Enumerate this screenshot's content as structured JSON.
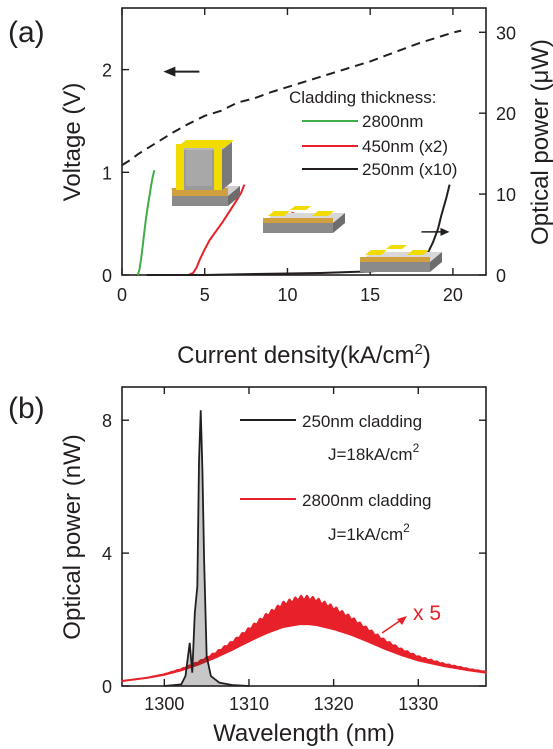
{
  "chart_data": [
    {
      "panel_label": "(a)",
      "type": "line",
      "xlabel": "Current density(kA/cm",
      "xlabel_sup": "2",
      "xlabel_end": ")",
      "ylabel": "Voltage (V)",
      "y2label": "Optical power (",
      "y2label_unit": "μW",
      "y2label_end": ")",
      "xlim": [
        0,
        22
      ],
      "ylim": [
        0,
        2.6
      ],
      "y2lim": [
        0,
        33
      ],
      "xticks": [
        0,
        5,
        10,
        15,
        20
      ],
      "yticks": [
        0,
        1,
        2
      ],
      "y2ticks": [
        0,
        10,
        20,
        30
      ],
      "legend_title": "Cladding thickness:",
      "legend_position": "top-right",
      "series": [
        {
          "name": "2800nm",
          "axis": "left",
          "color": "#3fae49",
          "style": "solid",
          "x": [
            0.95,
            1.05,
            1.15,
            1.25,
            1.35,
            1.45,
            1.55,
            1.65,
            1.75,
            1.85,
            1.95
          ],
          "y": [
            0,
            0.05,
            0.15,
            0.28,
            0.42,
            0.55,
            0.66,
            0.76,
            0.86,
            0.95,
            1.02
          ]
        },
        {
          "name": "450nm (x2)",
          "axis": "left",
          "color": "#e8202a",
          "style": "solid",
          "x": [
            3.0,
            4.0,
            4.3,
            4.5,
            4.7,
            5.0,
            5.3,
            5.7,
            6.1,
            6.5,
            6.9,
            7.2,
            7.4
          ],
          "y": [
            0,
            0,
            0.02,
            0.07,
            0.15,
            0.25,
            0.34,
            0.43,
            0.52,
            0.62,
            0.72,
            0.8,
            0.88
          ]
        },
        {
          "name": "250nm (x10)",
          "axis": "left",
          "color": "#231f20",
          "style": "solid",
          "x": [
            1.5,
            5,
            8,
            10,
            12,
            14,
            15,
            16,
            17,
            17.6,
            18.1,
            18.5,
            18.8,
            19.1,
            19.3,
            19.6,
            19.8
          ],
          "y": [
            0,
            0,
            0.01,
            0.015,
            0.02,
            0.03,
            0.035,
            0.045,
            0.06,
            0.09,
            0.15,
            0.22,
            0.32,
            0.45,
            0.58,
            0.75,
            0.88
          ]
        },
        {
          "name": "Voltage",
          "axis": "left",
          "color": "#231f20",
          "style": "dashed",
          "x": [
            0,
            0.5,
            1,
            2,
            3,
            4,
            5,
            6,
            7,
            8,
            9,
            10,
            11,
            12,
            13,
            14,
            15,
            16,
            17,
            18,
            19,
            20,
            20.5
          ],
          "y": [
            1.07,
            1.12,
            1.18,
            1.28,
            1.38,
            1.47,
            1.55,
            1.6,
            1.68,
            1.72,
            1.78,
            1.83,
            1.88,
            1.93,
            1.98,
            2.03,
            2.08,
            2.14,
            2.2,
            2.26,
            2.31,
            2.36,
            2.38
          ]
        }
      ],
      "annotations": [
        {
          "kind": "arrow-left",
          "color": "#231f20",
          "x": 2.5,
          "y": 1.98
        },
        {
          "kind": "arrow-right",
          "color": "#3fae49",
          "x": 3.0,
          "y": 0.84
        },
        {
          "kind": "arrow-right",
          "color": "#e8202a",
          "x": 9.1,
          "y": 0.58
        },
        {
          "kind": "arrow-right",
          "color": "#231f20",
          "x": 18.1,
          "y": 0.42
        }
      ]
    },
    {
      "panel_label": "(b)",
      "type": "line",
      "xlabel": "Wavelength (nm)",
      "ylabel": "Optical power (nW)",
      "xlim": [
        1295,
        1338
      ],
      "ylim": [
        0,
        9
      ],
      "xticks": [
        1300,
        1310,
        1320,
        1330
      ],
      "yticks": [
        0,
        4,
        8
      ],
      "legend_position": "top-right",
      "series": [
        {
          "name": "250nm cladding",
          "note": "J=18kA/cm",
          "note_sup": "2",
          "color": "#231f20",
          "x": [
            1300,
            1302,
            1302.5,
            1303,
            1303.3,
            1303.6,
            1303.9,
            1304.1,
            1304.3,
            1304.5,
            1304.7,
            1305,
            1305.5,
            1306.5,
            1308,
            1310
          ],
          "y": [
            0,
            0.05,
            0.3,
            1.3,
            0.4,
            2.2,
            3.0,
            6.8,
            8.3,
            6.5,
            3.8,
            0.9,
            0.3,
            0.1,
            0.03,
            0
          ]
        },
        {
          "name": "2800nm cladding",
          "note": "J=1kA/cm",
          "note_sup": "2",
          "color": "#e8202a",
          "x": [
            1295,
            1298,
            1300,
            1302,
            1304,
            1306,
            1308,
            1310,
            1312,
            1314,
            1316,
            1317,
            1318,
            1320,
            1322,
            1324,
            1326,
            1328,
            1330,
            1333,
            1336,
            1338
          ],
          "y": [
            0.15,
            0.25,
            0.35,
            0.5,
            0.7,
            0.95,
            1.25,
            1.6,
            1.95,
            2.25,
            2.4,
            2.4,
            2.35,
            2.15,
            1.9,
            1.6,
            1.3,
            1.05,
            0.85,
            0.65,
            0.5,
            0.42
          ]
        }
      ],
      "annotations": [
        {
          "kind": "text",
          "text": "x 5",
          "color": "#e8202a"
        }
      ]
    }
  ]
}
